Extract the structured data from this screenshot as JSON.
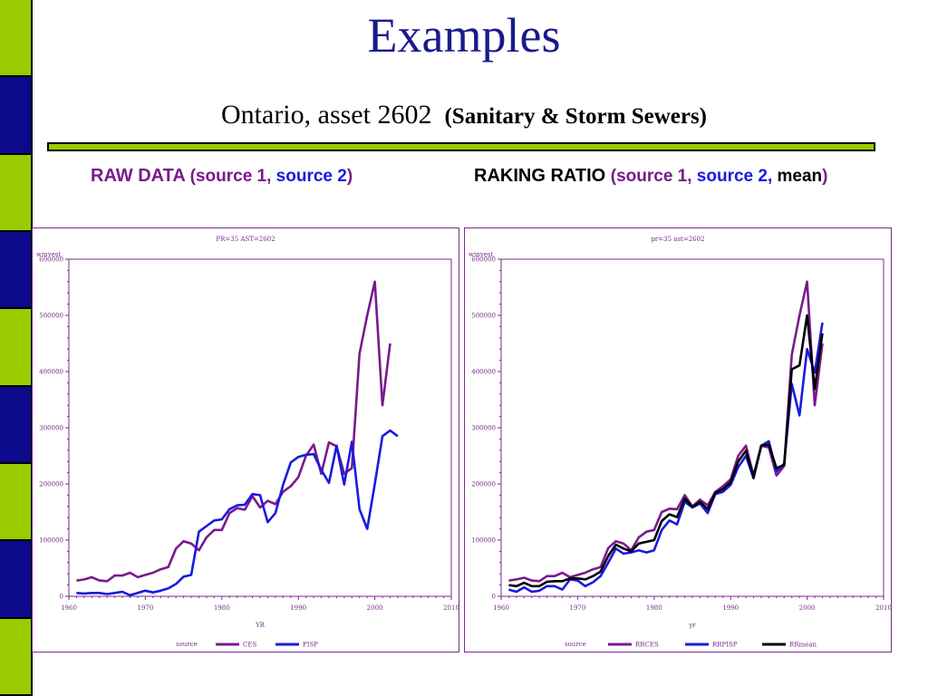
{
  "slide": {
    "title": "Examples",
    "subtitle_plain": "Ontario, asset 2602",
    "subtitle_bold": "(Sanitary & Storm Sewers)"
  },
  "left_heading": {
    "label": "RAW DATA",
    "open": "(",
    "source1": "source 1,",
    "source2": "source 2",
    "close": ")"
  },
  "right_heading": {
    "label": "RAKING RATIO",
    "open": "(",
    "source1": "source 1,",
    "source2": "source 2,",
    "mean": "mean",
    "close": ")"
  },
  "colors": {
    "purple": "#7a1a8c",
    "blue": "#1a1adf",
    "black": "#000000",
    "title_blue": "#1a1a8c",
    "stripe_green": "#99cc00",
    "stripe_navy": "#0a0a8a"
  },
  "chart_data": [
    {
      "type": "line",
      "title": "PR=35 AST=2602",
      "xlabel": "YR",
      "ylabel": "winvest",
      "xlim": [
        1960,
        2010
      ],
      "ylim": [
        0,
        600000
      ],
      "xticks": [
        1960,
        1970,
        1980,
        1990,
        2000,
        2010
      ],
      "yticks": [
        0,
        100000,
        200000,
        300000,
        400000,
        500000,
        600000
      ],
      "legend_title": "source",
      "legend_position": "bottom",
      "series": [
        {
          "name": "CES",
          "color": "#7a1a8c",
          "points": [
            [
              1961,
              28000
            ],
            [
              1962,
              30000
            ],
            [
              1963,
              34000
            ],
            [
              1964,
              28000
            ],
            [
              1965,
              27000
            ],
            [
              1966,
              37000
            ],
            [
              1967,
              37000
            ],
            [
              1968,
              42000
            ],
            [
              1969,
              34000
            ],
            [
              1970,
              38000
            ],
            [
              1971,
              42000
            ],
            [
              1972,
              48000
            ],
            [
              1973,
              52000
            ],
            [
              1974,
              85000
            ],
            [
              1975,
              98000
            ],
            [
              1976,
              94000
            ],
            [
              1977,
              82000
            ],
            [
              1978,
              105000
            ],
            [
              1979,
              118000
            ],
            [
              1980,
              118000
            ],
            [
              1981,
              148000
            ],
            [
              1982,
              157000
            ],
            [
              1983,
              154000
            ],
            [
              1984,
              178000
            ],
            [
              1985,
              158000
            ],
            [
              1986,
              170000
            ],
            [
              1987,
              164000
            ],
            [
              1988,
              186000
            ],
            [
              1989,
              196000
            ],
            [
              1990,
              212000
            ],
            [
              1991,
              250000
            ],
            [
              1992,
              270000
            ],
            [
              1993,
              218000
            ],
            [
              1994,
              274000
            ],
            [
              1995,
              267000
            ],
            [
              1996,
              218000
            ],
            [
              1997,
              228000
            ],
            [
              1998,
              432000
            ],
            [
              1999,
              500000
            ],
            [
              2000,
              560000
            ],
            [
              2001,
              340000
            ],
            [
              2002,
              450000
            ]
          ]
        },
        {
          "name": "PISP",
          "color": "#1a1adf",
          "points": [
            [
              1961,
              6000
            ],
            [
              1962,
              5000
            ],
            [
              1963,
              6000
            ],
            [
              1964,
              6000
            ],
            [
              1965,
              4000
            ],
            [
              1966,
              6000
            ],
            [
              1967,
              8000
            ],
            [
              1968,
              2000
            ],
            [
              1969,
              6000
            ],
            [
              1970,
              10000
            ],
            [
              1971,
              7000
            ],
            [
              1972,
              10000
            ],
            [
              1973,
              14000
            ],
            [
              1974,
              22000
            ],
            [
              1975,
              35000
            ],
            [
              1976,
              38000
            ],
            [
              1977,
              115000
            ],
            [
              1978,
              125000
            ],
            [
              1979,
              135000
            ],
            [
              1980,
              137000
            ],
            [
              1981,
              155000
            ],
            [
              1982,
              162000
            ],
            [
              1983,
              163000
            ],
            [
              1984,
              182000
            ],
            [
              1985,
              180000
            ],
            [
              1986,
              132000
            ],
            [
              1987,
              148000
            ],
            [
              1988,
              198000
            ],
            [
              1989,
              238000
            ],
            [
              1990,
              248000
            ],
            [
              1991,
              252000
            ],
            [
              1992,
              253000
            ],
            [
              1993,
              225000
            ],
            [
              1994,
              202000
            ],
            [
              1995,
              268000
            ],
            [
              1996,
              199000
            ],
            [
              1997,
              275000
            ],
            [
              1998,
              155000
            ],
            [
              1999,
              120000
            ],
            [
              2000,
              200000
            ],
            [
              2001,
              285000
            ],
            [
              2002,
              295000
            ],
            [
              2003,
              285000
            ]
          ]
        }
      ]
    },
    {
      "type": "line",
      "title": "pr=35 ast=2602",
      "xlabel": "yr",
      "ylabel": "winvest",
      "xlim": [
        1960,
        2010
      ],
      "ylim": [
        0,
        600000
      ],
      "xticks": [
        1960,
        1970,
        1980,
        1990,
        2000,
        2010
      ],
      "yticks": [
        0,
        100000,
        200000,
        300000,
        400000,
        500000,
        600000
      ],
      "legend_title": "source",
      "legend_position": "bottom",
      "series": [
        {
          "name": "RRCES",
          "color": "#7a1a8c",
          "points": [
            [
              1961,
              28000
            ],
            [
              1962,
              30000
            ],
            [
              1963,
              33000
            ],
            [
              1964,
              28000
            ],
            [
              1965,
              27000
            ],
            [
              1966,
              36000
            ],
            [
              1967,
              36000
            ],
            [
              1968,
              42000
            ],
            [
              1969,
              34000
            ],
            [
              1970,
              38000
            ],
            [
              1971,
              42000
            ],
            [
              1972,
              48000
            ],
            [
              1973,
              52000
            ],
            [
              1974,
              86000
            ],
            [
              1975,
              98000
            ],
            [
              1976,
              94000
            ],
            [
              1977,
              82000
            ],
            [
              1978,
              105000
            ],
            [
              1979,
              115000
            ],
            [
              1980,
              118000
            ],
            [
              1981,
              150000
            ],
            [
              1982,
              156000
            ],
            [
              1983,
              155000
            ],
            [
              1984,
              180000
            ],
            [
              1985,
              160000
            ],
            [
              1986,
              172000
            ],
            [
              1987,
              162000
            ],
            [
              1988,
              186000
            ],
            [
              1989,
              196000
            ],
            [
              1990,
              208000
            ],
            [
              1991,
              250000
            ],
            [
              1992,
              268000
            ],
            [
              1993,
              215000
            ],
            [
              1994,
              268000
            ],
            [
              1995,
              265000
            ],
            [
              1996,
              215000
            ],
            [
              1997,
              232000
            ],
            [
              1998,
              430000
            ],
            [
              1999,
              500000
            ],
            [
              2000,
              560000
            ],
            [
              2001,
              340000
            ],
            [
              2002,
              450000
            ]
          ]
        },
        {
          "name": "RRPISP",
          "color": "#1a1adf",
          "points": [
            [
              1961,
              12000
            ],
            [
              1962,
              8000
            ],
            [
              1963,
              16000
            ],
            [
              1964,
              8000
            ],
            [
              1965,
              10000
            ],
            [
              1966,
              18000
            ],
            [
              1967,
              18000
            ],
            [
              1968,
              12000
            ],
            [
              1969,
              30000
            ],
            [
              1970,
              28000
            ],
            [
              1971,
              18000
            ],
            [
              1972,
              25000
            ],
            [
              1973,
              36000
            ],
            [
              1974,
              60000
            ],
            [
              1975,
              85000
            ],
            [
              1976,
              76000
            ],
            [
              1977,
              78000
            ],
            [
              1978,
              82000
            ],
            [
              1979,
              78000
            ],
            [
              1980,
              82000
            ],
            [
              1981,
              118000
            ],
            [
              1982,
              135000
            ],
            [
              1983,
              128000
            ],
            [
              1984,
              168000
            ],
            [
              1985,
              158000
            ],
            [
              1986,
              165000
            ],
            [
              1987,
              148000
            ],
            [
              1988,
              182000
            ],
            [
              1989,
              186000
            ],
            [
              1990,
              198000
            ],
            [
              1991,
              230000
            ],
            [
              1992,
              250000
            ],
            [
              1993,
              210000
            ],
            [
              1994,
              268000
            ],
            [
              1995,
              276000
            ],
            [
              1996,
              222000
            ],
            [
              1997,
              236000
            ],
            [
              1998,
              378000
            ],
            [
              1999,
              322000
            ],
            [
              2000,
              440000
            ],
            [
              2001,
              398000
            ],
            [
              2002,
              487000
            ]
          ]
        },
        {
          "name": "RRmean",
          "color": "#000000",
          "points": [
            [
              1961,
              20000
            ],
            [
              1962,
              18000
            ],
            [
              1963,
              24000
            ],
            [
              1964,
              18000
            ],
            [
              1965,
              18000
            ],
            [
              1966,
              26000
            ],
            [
              1967,
              27000
            ],
            [
              1968,
              27000
            ],
            [
              1969,
              32000
            ],
            [
              1970,
              32000
            ],
            [
              1971,
              30000
            ],
            [
              1972,
              36000
            ],
            [
              1973,
              44000
            ],
            [
              1974,
              72000
            ],
            [
              1975,
              92000
            ],
            [
              1976,
              85000
            ],
            [
              1977,
              80000
            ],
            [
              1978,
              94000
            ],
            [
              1979,
              97000
            ],
            [
              1980,
              100000
            ],
            [
              1981,
              134000
            ],
            [
              1982,
              146000
            ],
            [
              1983,
              141000
            ],
            [
              1984,
              174000
            ],
            [
              1985,
              159000
            ],
            [
              1986,
              168000
            ],
            [
              1987,
              155000
            ],
            [
              1988,
              184000
            ],
            [
              1989,
              191000
            ],
            [
              1990,
              203000
            ],
            [
              1991,
              240000
            ],
            [
              1992,
              259000
            ],
            [
              1993,
              212000
            ],
            [
              1994,
              268000
            ],
            [
              1995,
              270000
            ],
            [
              1996,
              228000
            ],
            [
              1997,
              234000
            ],
            [
              1998,
              404000
            ],
            [
              1999,
              411000
            ],
            [
              2000,
              500000
            ],
            [
              2001,
              369000
            ],
            [
              2002,
              468000
            ]
          ]
        }
      ]
    }
  ]
}
